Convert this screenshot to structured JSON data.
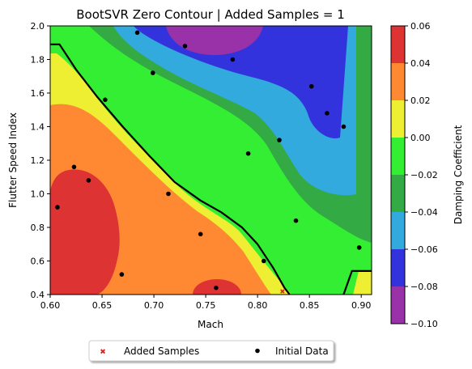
{
  "chart_data": {
    "type": "contour",
    "title": "BootSVR Zero Contour | Added Samples = 1",
    "xlabel": "Mach",
    "ylabel": "Flutter Speed Index",
    "xlim": [
      0.6,
      0.91
    ],
    "ylim": [
      0.4,
      2.0
    ],
    "xticks": [
      0.6,
      0.65,
      0.7,
      0.75,
      0.8,
      0.85,
      0.9
    ],
    "xtick_labels": [
      "0.60",
      "0.65",
      "0.70",
      "0.75",
      "0.80",
      "0.85",
      "0.90"
    ],
    "yticks": [
      0.4,
      0.6,
      0.8,
      1.0,
      1.2,
      1.4,
      1.6,
      1.8,
      2.0
    ],
    "ytick_labels": [
      "0.4",
      "0.6",
      "0.8",
      "1.0",
      "1.2",
      "1.4",
      "1.6",
      "1.8",
      "2.0"
    ],
    "colorbar": {
      "label": "Damping Coefficient",
      "levels": [
        -0.1,
        -0.08,
        -0.06,
        -0.04,
        -0.02,
        0.0,
        0.02,
        0.04,
        0.06
      ],
      "tick_labels": [
        "−0.10",
        "−0.08",
        "−0.06",
        "−0.04",
        "−0.02",
        "0.00",
        "0.02",
        "0.04",
        "0.06"
      ],
      "colors": [
        "#9932a8",
        "#3333dd",
        "#33aadd",
        "#33aa44",
        "#33ee33",
        "#eeee33",
        "#ff8833",
        "#dd3333"
      ]
    },
    "zero_contour": {
      "color": "#000000",
      "segments": [
        [
          [
            0.6,
            1.89
          ],
          [
            0.609,
            1.89
          ],
          [
            0.625,
            1.74
          ],
          [
            0.645,
            1.58
          ],
          [
            0.67,
            1.4
          ],
          [
            0.695,
            1.23
          ],
          [
            0.72,
            1.07
          ],
          [
            0.745,
            0.96
          ],
          [
            0.765,
            0.89
          ],
          [
            0.785,
            0.8
          ],
          [
            0.8,
            0.7
          ],
          [
            0.815,
            0.56
          ],
          [
            0.826,
            0.44
          ],
          [
            0.831,
            0.4
          ]
        ],
        [
          [
            0.883,
            0.4
          ],
          [
            0.891,
            0.54
          ],
          [
            0.91,
            0.54
          ]
        ]
      ]
    },
    "series": [
      {
        "name": "Added Samples",
        "marker": "x",
        "color": "#dd2222",
        "points": [
          [
            0.824,
            0.42
          ]
        ]
      },
      {
        "name": "Initial Data",
        "marker": "o",
        "color": "#000000",
        "points": [
          [
            0.607,
            0.92
          ],
          [
            0.623,
            1.16
          ],
          [
            0.637,
            1.08
          ],
          [
            0.653,
            1.56
          ],
          [
            0.669,
            0.52
          ],
          [
            0.684,
            1.96
          ],
          [
            0.699,
            1.72
          ],
          [
            0.714,
            1.0
          ],
          [
            0.73,
            1.88
          ],
          [
            0.745,
            0.76
          ],
          [
            0.76,
            0.44
          ],
          [
            0.776,
            1.8
          ],
          [
            0.791,
            1.24
          ],
          [
            0.806,
            0.6
          ],
          [
            0.821,
            1.32
          ],
          [
            0.837,
            0.84
          ],
          [
            0.852,
            1.64
          ],
          [
            0.867,
            1.48
          ],
          [
            0.883,
            1.4
          ],
          [
            0.898,
            0.68
          ]
        ]
      }
    ],
    "legend": {
      "placement": "bottom-center",
      "columns": 2
    }
  }
}
